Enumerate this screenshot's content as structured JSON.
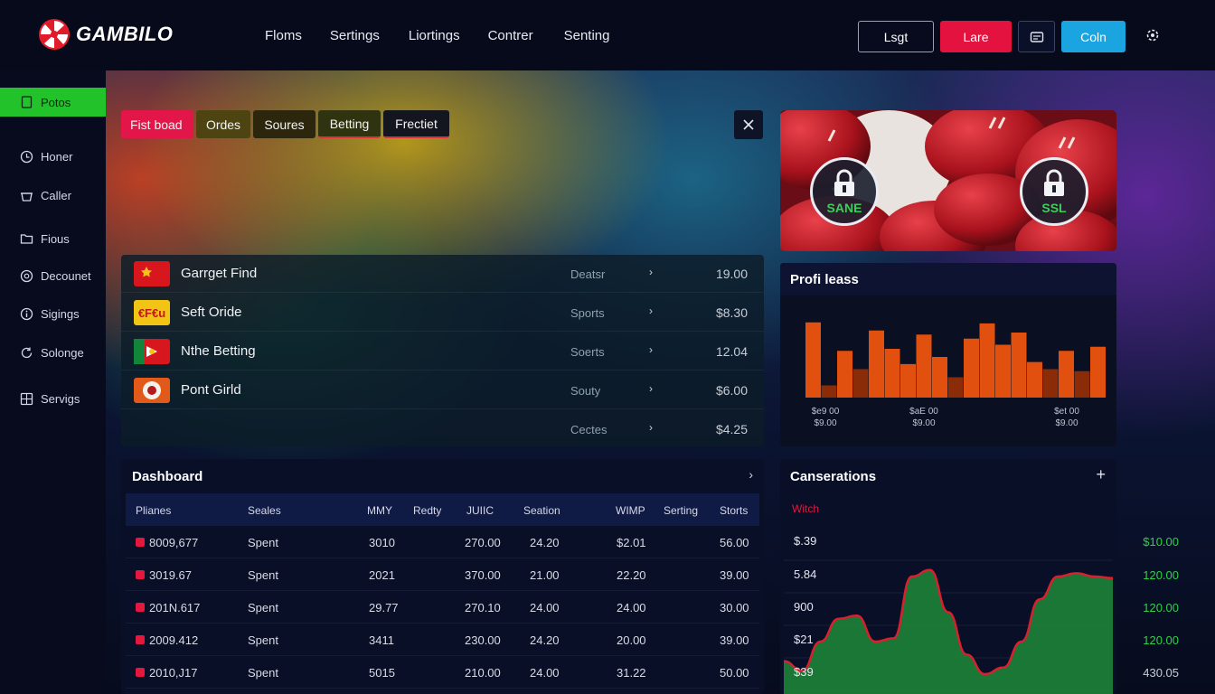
{
  "brand": {
    "name": "GAMBILO"
  },
  "nav": [
    "Floms",
    "Sertings",
    "Liortings",
    "Contrer",
    "Senting"
  ],
  "top_buttons": {
    "last": "Lsgt",
    "lare": "Lare",
    "coln": "Coln"
  },
  "sidebar": {
    "items": [
      {
        "label": "Potos",
        "icon": "document-icon",
        "active": true
      },
      {
        "label": "Honer",
        "icon": "clock-icon"
      },
      {
        "label": "Caller",
        "icon": "basket-icon"
      },
      {
        "label": "Fious",
        "icon": "folder-icon"
      },
      {
        "label": "Decounet",
        "icon": "settings-icon"
      },
      {
        "label": "Sigings",
        "icon": "info-icon"
      },
      {
        "label": "Solonge",
        "icon": "refresh-icon"
      },
      {
        "label": "Servigs",
        "icon": "grid-icon"
      }
    ]
  },
  "filters": [
    "Fist boad",
    "Ordes",
    "Soures",
    "Betting",
    "Frectiet"
  ],
  "games": [
    {
      "name": "Garrget Find",
      "category": "Deatsr",
      "value": "19.00",
      "icon_color": "#d8161e"
    },
    {
      "name": "Seft Oride",
      "category": "Sports",
      "value": "$8.30",
      "icon_color": "#f2c514"
    },
    {
      "name": "Nthe Betting",
      "category": "Soerts",
      "value": "12.04",
      "icon_color": "#d8161e"
    },
    {
      "name": "Pont Girld",
      "category": "Souty",
      "value": "$6.00",
      "icon_color": "#e25a1a"
    },
    {
      "name": "",
      "category": "Cectes",
      "value": "$4.25",
      "icon_color": ""
    }
  ],
  "game_logos": {
    "row2": "€F€u"
  },
  "promo": {
    "badge_left": "SANE",
    "badge_right": "SSL"
  },
  "profit": {
    "title": "Profi leass",
    "labels": [
      {
        "line1": "$e9 00",
        "line2": "$9.00"
      },
      {
        "line1": "$aE 00",
        "line2": "$9.00"
      },
      {
        "line1": "$et 00",
        "line2": "$9.00"
      }
    ]
  },
  "dashboard": {
    "title": "Dashboard",
    "columns": [
      "Plianes",
      "Seales",
      "MMY",
      "Redty",
      "JUIIC",
      "Seation",
      "WIMP",
      "Serting",
      "Storts"
    ],
    "rows": [
      [
        "8009,677",
        "Spent",
        "3010",
        "",
        "270.00",
        "24.20",
        "$2.01",
        "",
        "56.00"
      ],
      [
        "3019.67",
        "Spent",
        "2021",
        "",
        "370.00",
        "21.00",
        "22.20",
        "",
        "39.00"
      ],
      [
        "201N.617",
        "Spent",
        "29.77",
        "",
        "270.10",
        "24.00",
        "24.00",
        "",
        "30.00"
      ],
      [
        "2009.412",
        "Spent",
        "3411",
        "",
        "230.00",
        "24.20",
        "20.00",
        "",
        "39.00"
      ],
      [
        "2010,J17",
        "Spent",
        "5015",
        "",
        "210.00",
        "24.00",
        "31.22",
        "",
        "50.00"
      ]
    ]
  },
  "conversations": {
    "title": "Canserations",
    "subtitle": "Witch",
    "y_labels": [
      "$.39",
      "5.84",
      "900",
      "$21",
      "$39"
    ],
    "right_values": [
      {
        "v": "$10.00",
        "color": "#2fd14b"
      },
      {
        "v": "120.00",
        "color": "#2fd14b"
      },
      {
        "v": "120.00",
        "color": "#2fd14b"
      },
      {
        "v": "120.00",
        "color": "#2fd14b"
      },
      {
        "v": "430.05",
        "color": "#c9ccd6"
      }
    ]
  },
  "chart_data": [
    {
      "type": "bar",
      "title": "Profi leass",
      "series": [
        {
          "values": [
            74,
            12,
            46,
            28,
            66,
            48,
            33,
            62,
            40,
            20,
            58,
            73,
            52,
            64,
            35,
            28,
            46,
            26,
            50
          ]
        }
      ],
      "ylim": [
        0,
        80
      ],
      "colors": [
        "#e1500f",
        "#8a2c08"
      ]
    },
    {
      "type": "area",
      "title": "Canserations",
      "x": [
        0,
        1,
        2,
        3,
        4,
        5,
        6,
        7,
        8,
        9,
        10,
        11,
        12,
        13,
        14,
        15,
        16,
        17,
        18
      ],
      "values": [
        18,
        12,
        30,
        44,
        46,
        30,
        32,
        70,
        74,
        48,
        22,
        10,
        14,
        30,
        56,
        70,
        72,
        70,
        69
      ],
      "ylim": [
        0,
        100
      ],
      "colors": [
        "#1f8a38",
        "#d8202e"
      ]
    }
  ]
}
